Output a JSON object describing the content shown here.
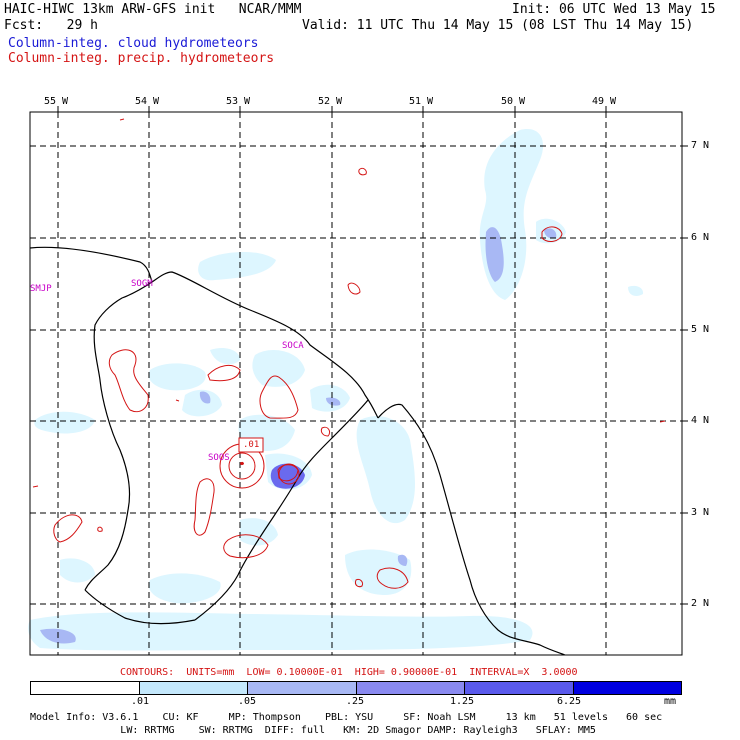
{
  "header": {
    "title": "HAIC-HIWC 13km ARW-GFS init   NCAR/MMM",
    "init": "Init: 06 UTC Wed 13 May 15",
    "fcst": "Fcst:   29 h",
    "valid": "Valid: 11 UTC Thu 14 May 15 (08 LST Thu 14 May 15)",
    "legend_cloud": "Column-integ. cloud hydrometeors",
    "legend_precip": "Column-integ. precip. hydrometeors"
  },
  "map": {
    "lon_labels": [
      "55 W",
      "54 W",
      "53 W",
      "52 W",
      "51 W",
      "50 W",
      "49 W"
    ],
    "lat_labels": [
      "7 N",
      "6 N",
      "5 N",
      "4 N",
      "3 N",
      "2 N"
    ],
    "stations": [
      "SMJP",
      "SOGM",
      "SOCA",
      "SOOS"
    ],
    "contour_label": ".01",
    "colors": {
      "lightest": "#e0f8ff",
      "light": "#c4e8fc",
      "medium": "#a8b8f4",
      "strong": "#6a6aee",
      "deep": "#0000e0",
      "contour": "#d41414"
    }
  },
  "contours_note": "CONTOURS:  UNITS=mm  LOW= 0.10000E-01  HIGH= 0.90000E-01  INTERVAL=X  3.0000",
  "colorbar": {
    "ticks": [
      ".01",
      ".05",
      ".25",
      "1.25",
      "6.25"
    ],
    "unit": "mm",
    "colors": [
      "#ffffff",
      "#c4e8fc",
      "#a8b8f4",
      "#8a8af0",
      "#5a5aec",
      "#0000e0"
    ]
  },
  "model_info": {
    "line1": "Model Info: V3.6.1    CU: KF     MP: Thompson    PBL: YSU     SF: Noah LSM     13 km   51 levels   60 sec",
    "line2": "               LW: RRTMG    SW: RRTMG  DIFF: full   KM: 2D Smagor DAMP: Rayleigh3   SFLAY: MM5"
  }
}
